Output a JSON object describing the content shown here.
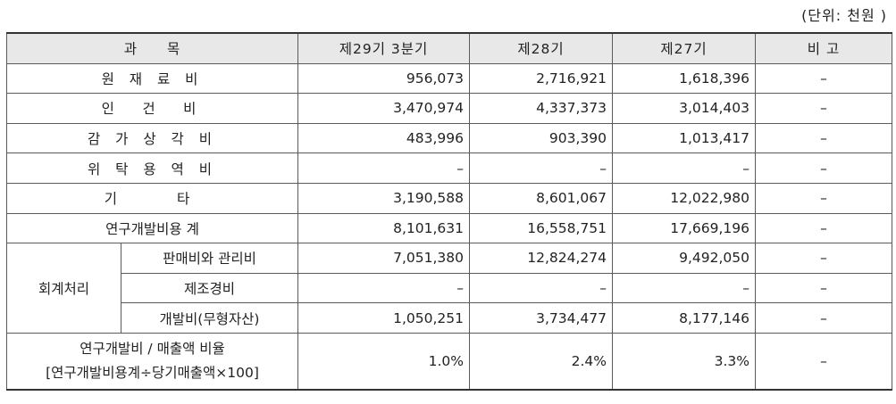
{
  "unit_note": "(단위: 천원 )",
  "columns": {
    "subject": "과　　목",
    "q29": "제29기 3분기",
    "q28": "제28기",
    "q27": "제27기",
    "note": "비 고"
  },
  "rows": {
    "raw_material": {
      "label": "원 재 료 비",
      "v29": "956,073",
      "v28": "2,716,921",
      "v27": "1,618,396",
      "note": "–"
    },
    "labor": {
      "label": "인　건　비",
      "v29": "3,470,974",
      "v28": "4,337,373",
      "v27": "3,014,403",
      "note": "–"
    },
    "depreciation": {
      "label": "감 가 상 각 비",
      "v29": "483,996",
      "v28": "903,390",
      "v27": "1,013,417",
      "note": "–"
    },
    "outsourcing": {
      "label": "위 탁 용 역 비",
      "v29": "–",
      "v28": "–",
      "v27": "–",
      "note": "–"
    },
    "other": {
      "label": "기　　타",
      "v29": "3,190,588",
      "v28": "8,601,067",
      "v27": "12,022,980",
      "note": "–"
    },
    "rd_total": {
      "label": "연구개발비용 계",
      "v29": "8,101,631",
      "v28": "16,558,751",
      "v27": "17,669,196",
      "note": "–"
    },
    "accounting_group": "회계처리",
    "sga": {
      "label": "판매비와 관리비",
      "v29": "7,051,380",
      "v28": "12,824,274",
      "v27": "9,492,050",
      "note": "–"
    },
    "manufacturing": {
      "label": "제조경비",
      "v29": "–",
      "v28": "–",
      "v27": "–",
      "note": "–"
    },
    "development": {
      "label": "개발비(무형자산)",
      "v29": "1,050,251",
      "v28": "3,734,477",
      "v27": "8,177,146",
      "note": "–"
    },
    "ratio": {
      "label_line1": "연구개발비 / 매출액 비율",
      "label_line2": "[연구개발비용계÷당기매출액×100]",
      "v29": "1.0%",
      "v28": "2.4%",
      "v27": "3.3%",
      "note": "–"
    }
  }
}
